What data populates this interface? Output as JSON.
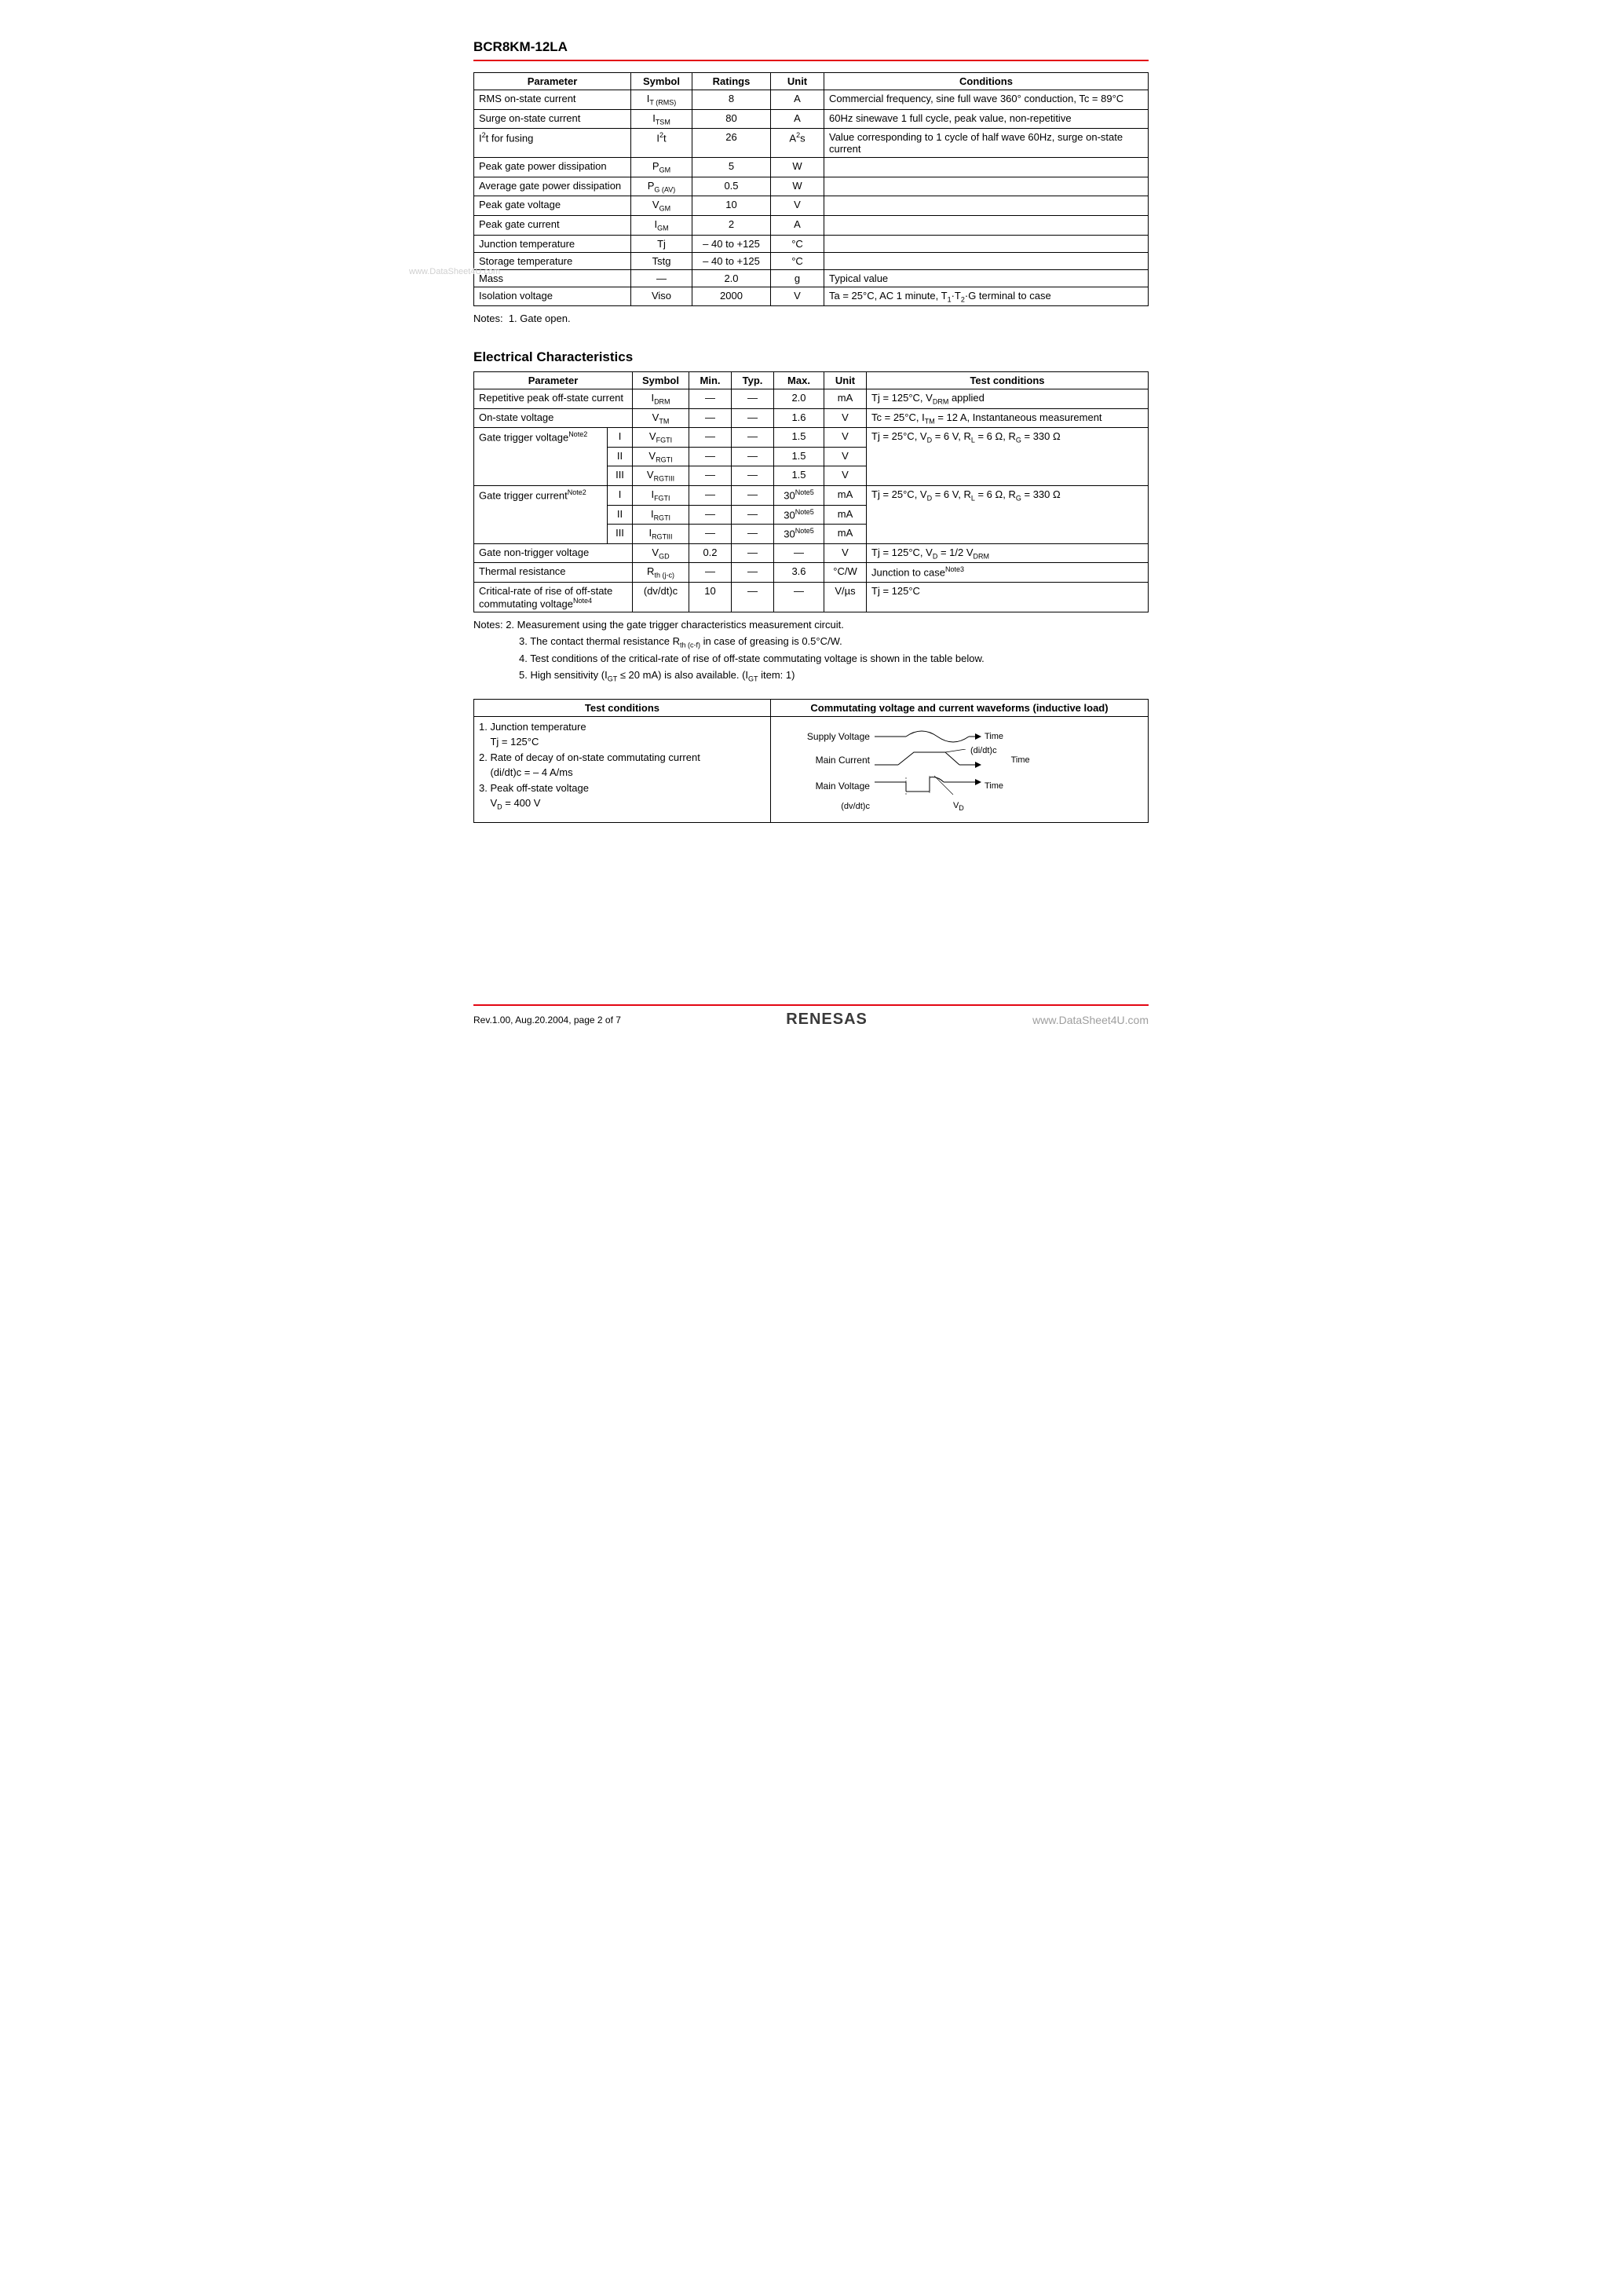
{
  "header": {
    "part_number": "BCR8KM-12LA"
  },
  "watermark_left": "www.DataSheet4U.com",
  "table1": {
    "headers": [
      "Parameter",
      "Symbol",
      "Ratings",
      "Unit",
      "Conditions"
    ],
    "col_widths": [
      "200px",
      "78px",
      "100px",
      "68px",
      "auto"
    ],
    "rows": [
      {
        "param": "RMS on-state current",
        "symbol": "I<sub>T (RMS)</sub>",
        "ratings": "8",
        "unit": "A",
        "cond": "Commercial frequency, sine full wave 360° conduction, Tc = 89°C"
      },
      {
        "param": "Surge on-state current",
        "symbol": "I<sub>TSM</sub>",
        "ratings": "80",
        "unit": "A",
        "cond": "60Hz sinewave 1 full cycle, peak value, non-repetitive"
      },
      {
        "param": "I<sup>2</sup>t for fusing",
        "symbol": "I<sup>2</sup>t",
        "ratings": "26",
        "unit": "A<sup>2</sup>s",
        "cond": "Value corresponding to 1 cycle of half wave 60Hz, surge on-state current"
      },
      {
        "param": "Peak gate power dissipation",
        "symbol": "P<sub>GM</sub>",
        "ratings": "5",
        "unit": "W",
        "cond": ""
      },
      {
        "param": "Average gate power dissipation",
        "symbol": "P<sub>G (AV)</sub>",
        "ratings": "0.5",
        "unit": "W",
        "cond": ""
      },
      {
        "param": "Peak gate voltage",
        "symbol": "V<sub>GM</sub>",
        "ratings": "10",
        "unit": "V",
        "cond": ""
      },
      {
        "param": "Peak gate current",
        "symbol": "I<sub>GM</sub>",
        "ratings": "2",
        "unit": "A",
        "cond": ""
      },
      {
        "param": "Junction temperature",
        "symbol": "Tj",
        "ratings": "– 40 to +125",
        "unit": "°C",
        "cond": ""
      },
      {
        "param": "Storage temperature",
        "symbol": "Tstg",
        "ratings": "– 40 to +125",
        "unit": "°C",
        "cond": ""
      },
      {
        "param": "Mass",
        "symbol": "—",
        "ratings": "2.0",
        "unit": "g",
        "cond": "Typical value"
      },
      {
        "param": "Isolation voltage",
        "symbol": "Viso",
        "ratings": "2000",
        "unit": "V",
        "cond": "Ta = 25°C, AC 1 minute, T<sub>1</sub>·T<sub>2</sub>·G terminal to case"
      }
    ]
  },
  "notes1": {
    "label": "Notes:",
    "items": [
      "1.  Gate open."
    ]
  },
  "section2_title": "Electrical Characteristics",
  "table2": {
    "headers": [
      "Parameter",
      "Symbol",
      "Min.",
      "Typ.",
      "Max.",
      "Unit",
      "Test conditions"
    ],
    "col_widths": [
      "170px",
      "32px",
      "72px",
      "54px",
      "54px",
      "64px",
      "54px",
      "auto"
    ],
    "rows": [
      {
        "param": "Repetitive peak off-state current",
        "param_colspan": 2,
        "symbol": "I<sub>DRM</sub>",
        "min": "—",
        "typ": "—",
        "max": "2.0",
        "unit": "mA",
        "cond": "Tj = 125°C, V<sub>DRM</sub> applied",
        "cond_rowspan": 1
      },
      {
        "param": "On-state voltage",
        "param_colspan": 2,
        "symbol": "V<sub>TM</sub>",
        "min": "—",
        "typ": "—",
        "max": "1.6",
        "unit": "V",
        "cond": "Tc = 25°C, I<sub>TM</sub> = 12 A, Instantaneous measurement",
        "cond_rowspan": 1
      },
      {
        "param": "Gate trigger voltage<sup>Note2</sup>",
        "param_rowspan": 3,
        "mode": "I",
        "symbol": "V<sub>FGTI</sub>",
        "min": "—",
        "typ": "—",
        "max": "1.5",
        "unit": "V",
        "cond": "Tj = 25°C, V<sub>D</sub> = 6 V, R<sub>L</sub> = 6 Ω, R<sub>G</sub> = 330 Ω",
        "cond_rowspan": 3
      },
      {
        "mode": "II",
        "symbol": "V<sub>RGTI</sub>",
        "min": "—",
        "typ": "—",
        "max": "1.5",
        "unit": "V"
      },
      {
        "mode": "III",
        "symbol": "V<sub>RGTIII</sub>",
        "min": "—",
        "typ": "—",
        "max": "1.5",
        "unit": "V"
      },
      {
        "param": "Gate trigger current<sup>Note2</sup>",
        "param_rowspan": 3,
        "mode": "I",
        "symbol": "I<sub>FGTI</sub>",
        "min": "—",
        "typ": "—",
        "max": "30<sup>Note5</sup>",
        "unit": "mA",
        "cond": "Tj = 25°C, V<sub>D</sub> = 6 V, R<sub>L</sub> = 6 Ω, R<sub>G</sub> = 330 Ω",
        "cond_rowspan": 3
      },
      {
        "mode": "II",
        "symbol": "I<sub>RGTI</sub>",
        "min": "—",
        "typ": "—",
        "max": "30<sup>Note5</sup>",
        "unit": "mA"
      },
      {
        "mode": "III",
        "symbol": "I<sub>RGTIII</sub>",
        "min": "—",
        "typ": "—",
        "max": "30<sup>Note5</sup>",
        "unit": "mA"
      },
      {
        "param": "Gate non-trigger voltage",
        "param_colspan": 2,
        "symbol": "V<sub>GD</sub>",
        "min": "0.2",
        "typ": "—",
        "max": "—",
        "unit": "V",
        "cond": "Tj = 125°C, V<sub>D</sub> = 1/2 V<sub>DRM</sub>",
        "cond_rowspan": 1
      },
      {
        "param": "Thermal resistance",
        "param_colspan": 2,
        "symbol": "R<sub>th (j-c)</sub>",
        "min": "—",
        "typ": "—",
        "max": "3.6",
        "unit": "°C/W",
        "cond": "Junction to case<sup>Note3</sup>",
        "cond_rowspan": 1
      },
      {
        "param": "Critical-rate of rise of off-state commutating voltage<sup>Note4</sup>",
        "param_colspan": 2,
        "symbol": "(dv/dt)c",
        "min": "10",
        "typ": "—",
        "max": "—",
        "unit": "V/µs",
        "cond": "Tj = 125°C",
        "cond_rowspan": 1
      }
    ]
  },
  "notes2": {
    "label": "Notes:",
    "items": [
      "2.  Measurement using the gate trigger characteristics measurement circuit.",
      "3.  The contact thermal resistance R<sub>th (c-f)</sub> in case of greasing is 0.5°C/W.",
      "4.  Test conditions of the critical-rate of rise of off-state commutating voltage is shown in the table below.",
      "5.  High sensitivity (I<sub>GT</sub> ≤ 20 mA) is also available. (I<sub>GT</sub> item: 1)"
    ]
  },
  "table3": {
    "left_header": "Test conditions",
    "right_header": "Commutating voltage and current waveforms (inductive load)",
    "left_body": [
      "1. Junction temperature",
      "    Tj = 125°C",
      "2. Rate of decay of on-state commutating current",
      "    (di/dt)c = – 4 A/ms",
      "3. Peak off-state voltage",
      "    V<sub>D</sub> = 400 V"
    ],
    "waveform_labels": {
      "supply": "Supply Voltage",
      "main_i": "Main Current",
      "main_v": "Main Voltage",
      "dvdt": "(dv/dt)c",
      "didt": "(di/dt)c",
      "time": "Time",
      "vd": "V<sub>D</sub>"
    }
  },
  "footer": {
    "rev": "Rev.1.00,  Aug.20.2004,  page 2 of 7",
    "logo": "RENESAS",
    "right": "www.DataSheet4U.com"
  }
}
